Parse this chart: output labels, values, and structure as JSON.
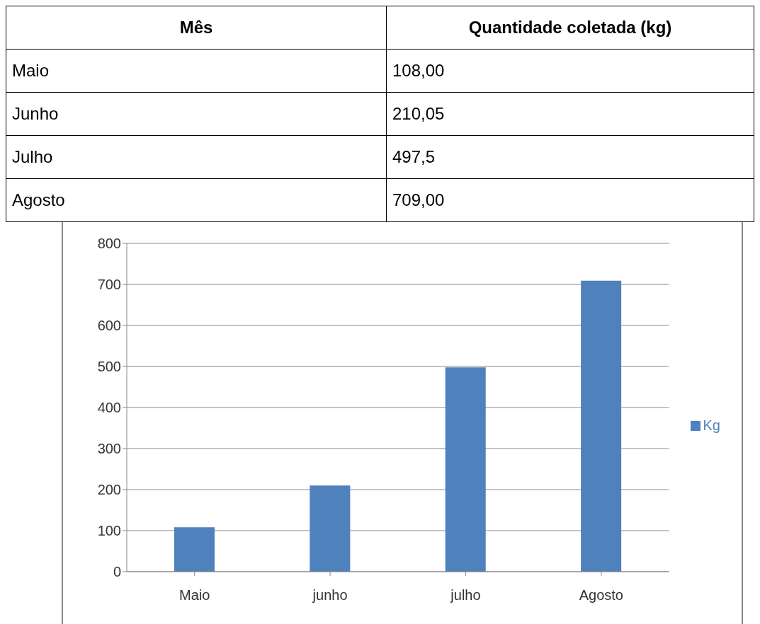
{
  "chart_data": {
    "type": "bar",
    "categories": [
      "Maio",
      "junho",
      "julho",
      "Agosto"
    ],
    "series": [
      {
        "name": "Kg",
        "color": "#4f81bd",
        "values": [
          108,
          210,
          498,
          709
        ]
      }
    ],
    "annotations": [
      "Mês",
      "Quantidade coletada (kg)",
      "Maio",
      "108,00",
      "Junho",
      "210,05",
      "Julho",
      "497,5",
      "Agosto",
      "709,00"
    ],
    "ylim": [
      0,
      800
    ],
    "yticks": [
      0,
      100,
      200,
      300,
      400,
      500,
      600,
      700,
      800
    ],
    "grid": "y",
    "legend": "right"
  }
}
